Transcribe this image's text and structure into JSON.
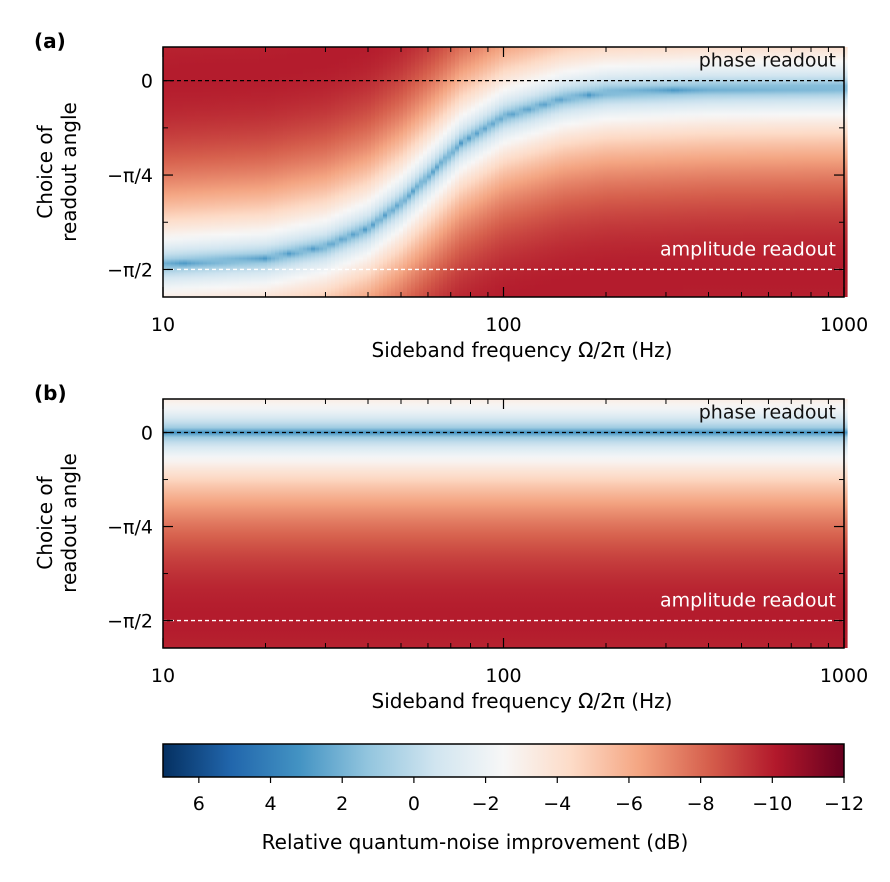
{
  "chart_data": [
    {
      "type": "heatmap",
      "panel_label": "(a)",
      "xlabel": "Sideband frequency Ω/2π (Hz)",
      "ylabel_line1": "Choice of",
      "ylabel_line2": "readout angle",
      "x_scale": "log",
      "xlim": [
        10,
        1000
      ],
      "x_ticks": [
        {
          "value": 10,
          "label": "10"
        },
        {
          "value": 100,
          "label": "100"
        },
        {
          "value": 1000,
          "label": "1000"
        }
      ],
      "ylim": [
        -1.8,
        0.28
      ],
      "y_ticks": [
        {
          "value": 0,
          "label": "0"
        },
        {
          "value": -0.7854,
          "label": "−π/4"
        },
        {
          "value": -1.5708,
          "label": "−π/2"
        }
      ],
      "optimal_angle": [
        {
          "x": 10,
          "y": -1.53
        },
        {
          "x": 20,
          "y": -1.48
        },
        {
          "x": 30,
          "y": -1.38
        },
        {
          "x": 40,
          "y": -1.23
        },
        {
          "x": 50,
          "y": -1.02
        },
        {
          "x": 60,
          "y": -0.8
        },
        {
          "x": 75,
          "y": -0.52
        },
        {
          "x": 100,
          "y": -0.3
        },
        {
          "x": 150,
          "y": -0.15
        },
        {
          "x": 200,
          "y": -0.1
        },
        {
          "x": 400,
          "y": -0.07
        },
        {
          "x": 1000,
          "y": -0.06
        }
      ],
      "reference_lines": [
        {
          "y": 0,
          "label": "phase readout",
          "style": "black-dashed"
        },
        {
          "y": -1.5708,
          "label": "amplitude readout",
          "style": "white-dashed"
        }
      ]
    },
    {
      "type": "heatmap",
      "panel_label": "(b)",
      "xlabel": "Sideband frequency Ω/2π (Hz)",
      "ylabel_line1": "Choice of",
      "ylabel_line2": "readout angle",
      "x_scale": "log",
      "xlim": [
        10,
        1000
      ],
      "x_ticks": [
        {
          "value": 10,
          "label": "10"
        },
        {
          "value": 100,
          "label": "100"
        },
        {
          "value": 1000,
          "label": "1000"
        }
      ],
      "ylim": [
        -1.8,
        0.28
      ],
      "y_ticks": [
        {
          "value": 0,
          "label": "0"
        },
        {
          "value": -0.7854,
          "label": "−π/4"
        },
        {
          "value": -1.5708,
          "label": "−π/2"
        }
      ],
      "optimal_angle": [
        {
          "x": 10,
          "y": 0.0
        },
        {
          "x": 1000,
          "y": 0.0
        }
      ],
      "reference_lines": [
        {
          "y": 0,
          "label": "phase readout",
          "style": "black-dashed"
        },
        {
          "y": -1.5708,
          "label": "amplitude readout",
          "style": "white-dashed"
        }
      ]
    }
  ],
  "colorbar": {
    "label": "Relative quantum-noise improvement (dB)",
    "range": [
      7,
      -12
    ],
    "ticks": [
      {
        "value": 6,
        "label": "6"
      },
      {
        "value": 4,
        "label": "4"
      },
      {
        "value": 2,
        "label": "2"
      },
      {
        "value": 0,
        "label": "0"
      },
      {
        "value": -2,
        "label": "−2"
      },
      {
        "value": -4,
        "label": "−4"
      },
      {
        "value": -6,
        "label": "−6"
      },
      {
        "value": -8,
        "label": "−8"
      },
      {
        "value": -10,
        "label": "−10"
      },
      {
        "value": -12,
        "label": "−12"
      }
    ],
    "colormap": [
      "#053061",
      "#2166ac",
      "#4393c3",
      "#92c5de",
      "#d1e5f0",
      "#f7f7f7",
      "#fddbc7",
      "#f4a582",
      "#d6604d",
      "#b2182b",
      "#67001f"
    ]
  }
}
